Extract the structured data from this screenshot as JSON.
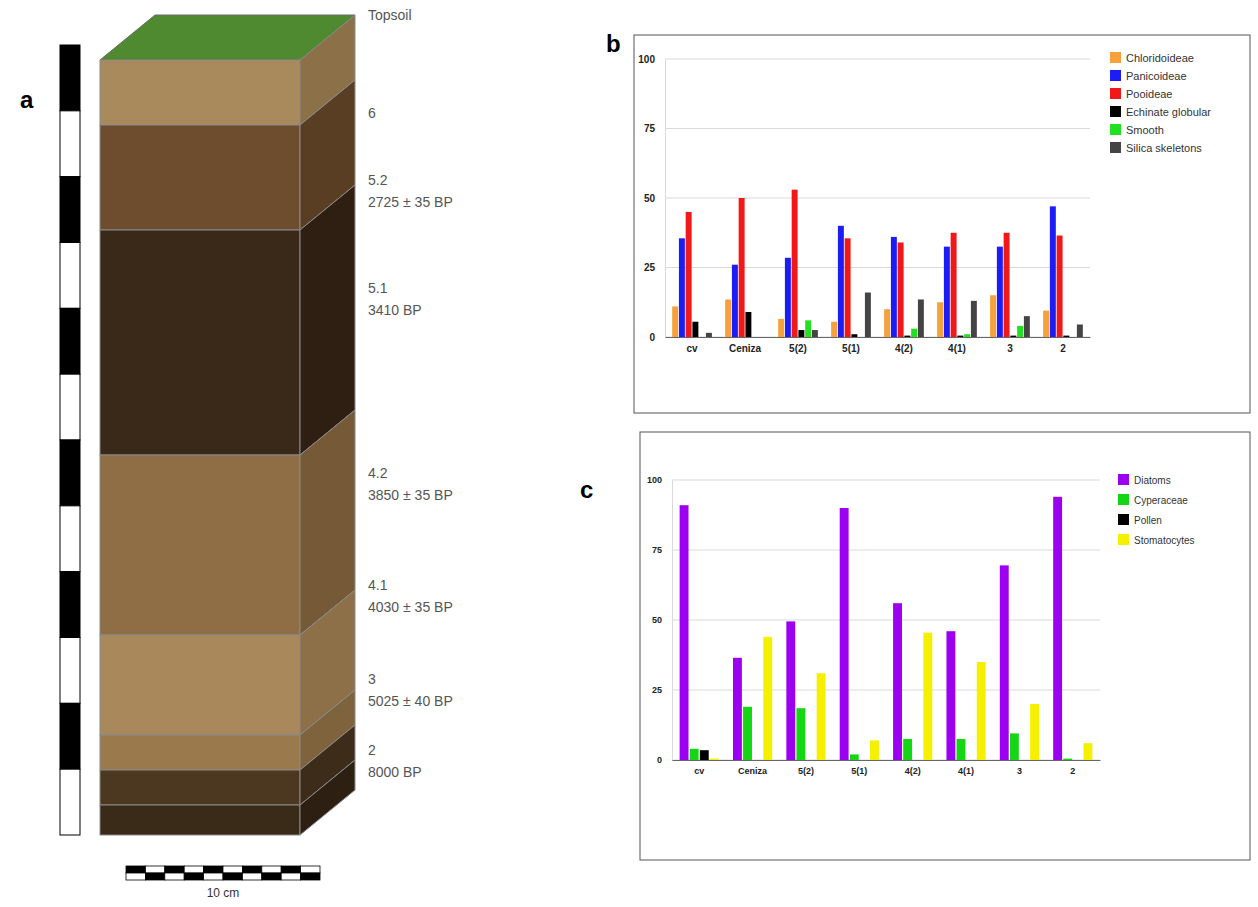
{
  "profile": {
    "panel_label": "a",
    "layers": [
      {
        "name": "Topsoil"
      },
      {
        "name": "6"
      },
      {
        "name": "5.2",
        "date": "2725 ± 35 BP"
      },
      {
        "name": "5.1",
        "date": "3410 BP"
      },
      {
        "name": "4.2",
        "date": "3850 ± 35 BP"
      },
      {
        "name": "4.1",
        "date": "4030 ± 35 BP"
      },
      {
        "name": "3",
        "date": "5025 ± 40 BP"
      },
      {
        "name": "2",
        "date": "8000 BP"
      }
    ],
    "scale_label": "10 cm"
  },
  "chart_data": [
    {
      "type": "bar",
      "panel_label": "b",
      "categories": [
        "cv",
        "Ceniza",
        "5(2)",
        "5(1)",
        "4(2)",
        "4(1)",
        "3",
        "2"
      ],
      "series": [
        {
          "name": "Chloridoideae",
          "color": "#f6a13b",
          "values": [
            11,
            13.5,
            6.5,
            5.5,
            10,
            12.5,
            15,
            9.5
          ]
        },
        {
          "name": "Panicoideae",
          "color": "#1c1cf5",
          "values": [
            35.5,
            26,
            28.5,
            40,
            36,
            32.5,
            32.5,
            47
          ]
        },
        {
          "name": "Pooideae",
          "color": "#f01818",
          "values": [
            45,
            50,
            53,
            35.5,
            34,
            37.5,
            37.5,
            36.5
          ]
        },
        {
          "name": "Echinate globular",
          "color": "#000000",
          "values": [
            5.5,
            9,
            2.5,
            1,
            0.5,
            0.5,
            0.5,
            0.5
          ]
        },
        {
          "name": "Smooth",
          "color": "#22e022",
          "values": [
            0,
            0,
            6,
            0,
            3,
            1,
            4,
            0
          ]
        },
        {
          "name": "Silica skeletons",
          "color": "#444444",
          "values": [
            1.5,
            0,
            2.5,
            16,
            13.5,
            13,
            7.5,
            4.5
          ]
        }
      ],
      "ylim": [
        0,
        100
      ],
      "yticks": [
        0,
        25,
        50,
        75,
        100
      ],
      "grid": true,
      "legend": "right"
    },
    {
      "type": "bar",
      "panel_label": "c",
      "categories": [
        "cv",
        "Ceniza",
        "5(2)",
        "5(1)",
        "4(2)",
        "4(1)",
        "3",
        "2"
      ],
      "series": [
        {
          "name": "Diatoms",
          "color": "#9b00f0",
          "values": [
            91,
            36.5,
            49.5,
            90,
            56,
            46,
            69.5,
            94
          ]
        },
        {
          "name": "Cyperaceae",
          "color": "#14d614",
          "values": [
            4,
            19,
            18.5,
            2,
            7.5,
            7.5,
            9.5,
            0.5
          ]
        },
        {
          "name": "Pollen",
          "color": "#000000",
          "values": [
            3.5,
            0,
            0,
            0,
            0,
            0,
            0,
            0
          ]
        },
        {
          "name": "Stomatocytes",
          "color": "#f5f000",
          "values": [
            0.5,
            44,
            31,
            7,
            45.5,
            35,
            20,
            6
          ]
        }
      ],
      "ylim": [
        0,
        100
      ],
      "yticks": [
        0,
        25,
        50,
        75,
        100
      ],
      "grid": true,
      "legend": "right"
    }
  ]
}
